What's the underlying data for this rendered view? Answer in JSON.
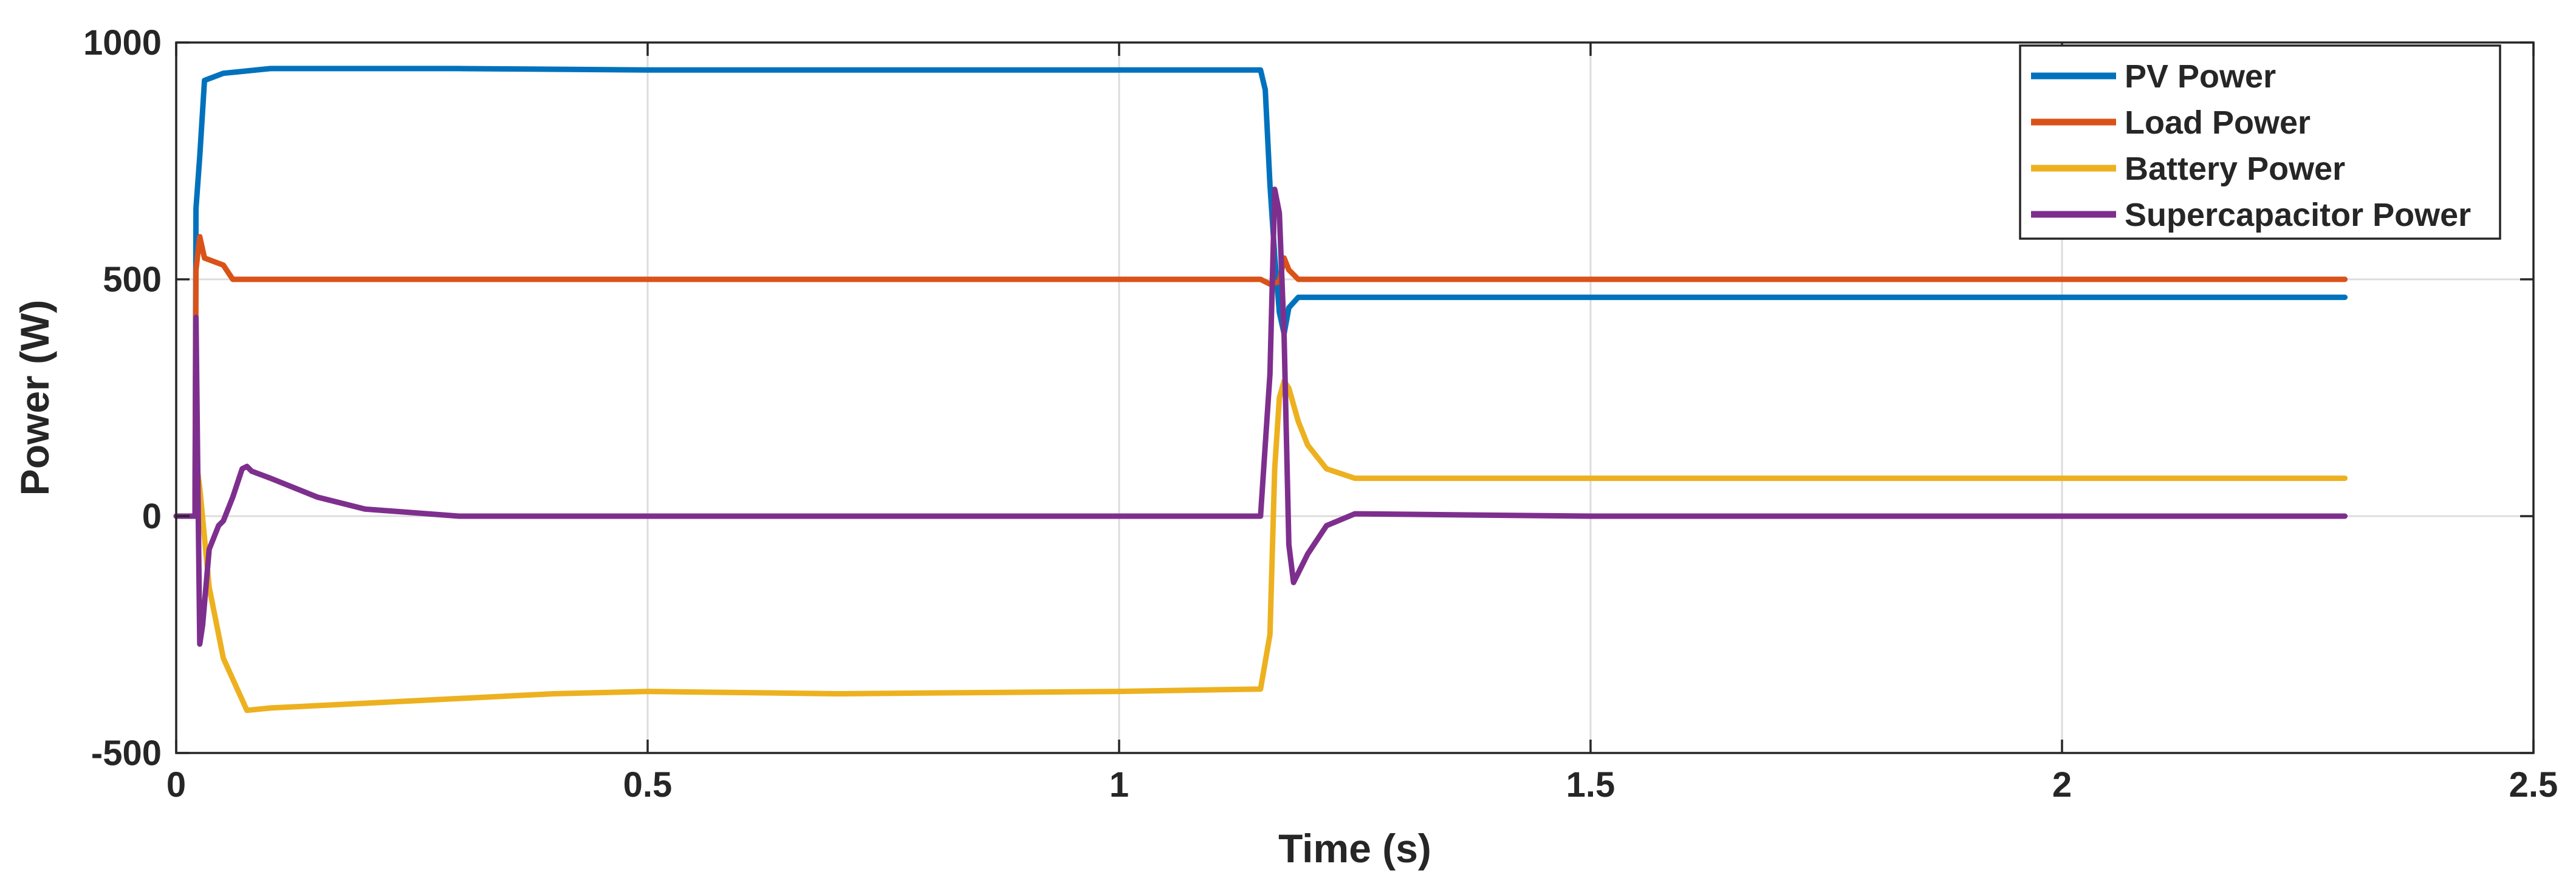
{
  "chart_data": {
    "type": "line",
    "title": "",
    "xlabel": "Time (s)",
    "ylabel": "Power (W)",
    "xlim": [
      0,
      2.5
    ],
    "ylim": [
      -500,
      1000
    ],
    "xticks": [
      0,
      0.5,
      1,
      1.5,
      2,
      2.5
    ],
    "xtick_labels": [
      "0",
      "0.5",
      "1",
      "1.5",
      "2",
      "2.5"
    ],
    "yticks": [
      -500,
      0,
      500,
      1000
    ],
    "ytick_labels": [
      "-500",
      "0",
      "500",
      "1000"
    ],
    "grid": true,
    "legend_position": "top-right",
    "series": [
      {
        "name": "PV Power",
        "color": "#0072BD",
        "x": [
          0.0,
          0.02,
          0.021,
          0.025,
          0.03,
          0.05,
          0.1,
          0.3,
          0.5,
          1.0,
          1.15,
          1.155,
          1.16,
          1.165,
          1.17,
          1.175,
          1.18,
          1.19,
          1.22,
          1.5,
          2.0,
          2.3
        ],
        "y": [
          0,
          0,
          650,
          760,
          920,
          935,
          945,
          945,
          942,
          942,
          942,
          900,
          700,
          550,
          430,
          385,
          440,
          462,
          462,
          462,
          462,
          462
        ]
      },
      {
        "name": "Load Power",
        "color": "#D95319",
        "x": [
          0.0,
          0.02,
          0.021,
          0.025,
          0.03,
          0.05,
          0.06,
          0.1,
          0.5,
          1.0,
          1.15,
          1.16,
          1.17,
          1.175,
          1.18,
          1.19,
          1.2,
          1.5,
          2.0,
          2.3
        ],
        "y": [
          0,
          0,
          520,
          590,
          545,
          530,
          500,
          500,
          500,
          500,
          500,
          490,
          495,
          545,
          520,
          500,
          500,
          500,
          500,
          500
        ]
      },
      {
        "name": "Battery Power",
        "color": "#EDB120",
        "x": [
          0.0,
          0.02,
          0.021,
          0.025,
          0.035,
          0.05,
          0.075,
          0.1,
          0.2,
          0.3,
          0.4,
          0.5,
          0.7,
          1.0,
          1.15,
          1.16,
          1.165,
          1.17,
          1.175,
          1.18,
          1.19,
          1.2,
          1.22,
          1.25,
          1.3,
          1.5,
          2.0,
          2.3
        ],
        "y": [
          0,
          0,
          120,
          60,
          -150,
          -300,
          -410,
          -405,
          -395,
          -385,
          -375,
          -370,
          -375,
          -370,
          -365,
          -250,
          100,
          250,
          285,
          270,
          200,
          150,
          100,
          80,
          80,
          80,
          80,
          80
        ]
      },
      {
        "name": "Supercapacitor Power",
        "color": "#7E2F8E",
        "x": [
          0.0,
          0.02,
          0.021,
          0.025,
          0.028,
          0.035,
          0.045,
          0.05,
          0.06,
          0.07,
          0.075,
          0.08,
          0.1,
          0.15,
          0.2,
          0.3,
          0.5,
          1.0,
          1.15,
          1.16,
          1.165,
          1.17,
          1.175,
          1.18,
          1.185,
          1.19,
          1.2,
          1.22,
          1.25,
          1.5,
          2.0,
          2.3
        ],
        "y": [
          0,
          0,
          420,
          -270,
          -230,
          -70,
          -20,
          -10,
          40,
          100,
          105,
          95,
          80,
          40,
          15,
          0,
          0,
          0,
          0,
          300,
          690,
          640,
          380,
          -60,
          -140,
          -120,
          -80,
          -20,
          5,
          0,
          0,
          0
        ]
      }
    ]
  }
}
